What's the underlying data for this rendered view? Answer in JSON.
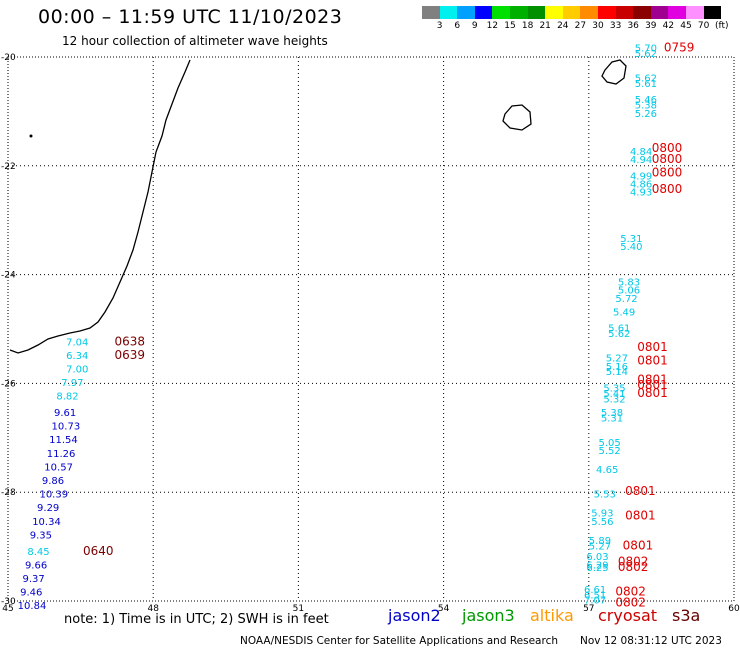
{
  "header": {
    "title": "00:00 – 11:59 UTC 11/10/2023",
    "subtitle": "12 hour collection of altimeter wave heights"
  },
  "colorbar": {
    "colors": [
      "#808080",
      "#00f0f0",
      "#00a0ff",
      "#0000ff",
      "#00e000",
      "#00b000",
      "#009000",
      "#ffff00",
      "#ffcc00",
      "#ff8c00",
      "#ff0000",
      "#c80000",
      "#8b0000",
      "#a00090",
      "#e000e0",
      "#ff90ff",
      "#000000"
    ],
    "labels": [
      "3",
      "6",
      "9",
      "12",
      "15",
      "18",
      "21",
      "24",
      "27",
      "30",
      "33",
      "36",
      "39",
      "42",
      "45",
      "70"
    ],
    "unit": "(ft)"
  },
  "axes": {
    "lon_ticks": [
      {
        "value": 45,
        "label": "45"
      },
      {
        "value": 48,
        "label": "48"
      },
      {
        "value": 51,
        "label": "51"
      },
      {
        "value": 54,
        "label": "54"
      },
      {
        "value": 57,
        "label": "57"
      },
      {
        "value": 60,
        "label": "60"
      }
    ],
    "lat_ticks": [
      {
        "value": -20,
        "label": "-20"
      },
      {
        "value": -22,
        "label": "-22"
      },
      {
        "value": -24,
        "label": "-24"
      },
      {
        "value": -26,
        "label": "-26"
      },
      {
        "value": -28,
        "label": "-28"
      },
      {
        "value": -30,
        "label": "-30"
      }
    ],
    "lon_range": [
      45,
      60
    ],
    "lat_range": [
      -30,
      -20
    ]
  },
  "colors": {
    "jason2": "#0000cc",
    "jason3": "#009900",
    "altika": "#ff9900",
    "cryosat": "#cc0000",
    "s3a": "#660000",
    "cyan": "#00c8e6",
    "red_time": "#e00000",
    "dark_time": "#7a0000"
  },
  "chart_data": {
    "type": "scatter",
    "title": "00:00 – 11:59 UTC 11/10/2023",
    "subtitle": "12 hour collection of altimeter wave heights",
    "track_west": [
      {
        "lon": 46.2,
        "lat": -25.3,
        "value": "7.04",
        "color": "cyan"
      },
      {
        "lon": 46.2,
        "lat": -25.55,
        "value": "6.34",
        "color": "cyan"
      },
      {
        "lon": 46.2,
        "lat": -25.8,
        "value": "7.00",
        "color": "cyan"
      },
      {
        "lon": 46.1,
        "lat": -26.05,
        "value": "7.97",
        "color": "cyan"
      },
      {
        "lon": 46.0,
        "lat": -26.3,
        "value": "8.82",
        "color": "cyan"
      },
      {
        "lon": 45.95,
        "lat": -26.6,
        "value": "9.61",
        "color": "blue"
      },
      {
        "lon": 45.9,
        "lat": -26.85,
        "value": "10.73",
        "color": "blue"
      },
      {
        "lon": 45.85,
        "lat": -27.1,
        "value": "11.54",
        "color": "blue"
      },
      {
        "lon": 45.8,
        "lat": -27.35,
        "value": "11.26",
        "color": "blue"
      },
      {
        "lon": 45.75,
        "lat": -27.6,
        "value": "10.57",
        "color": "blue"
      },
      {
        "lon": 45.7,
        "lat": -27.85,
        "value": "9.86",
        "color": "blue"
      },
      {
        "lon": 45.65,
        "lat": -28.1,
        "value": "10.39",
        "color": "blue"
      },
      {
        "lon": 45.6,
        "lat": -28.35,
        "value": "9.29",
        "color": "blue"
      },
      {
        "lon": 45.5,
        "lat": -28.6,
        "value": "10.34",
        "color": "blue"
      },
      {
        "lon": 45.45,
        "lat": -28.85,
        "value": "9.35",
        "color": "blue"
      },
      {
        "lon": 45.4,
        "lat": -29.15,
        "value": "8.45",
        "color": "cyan"
      },
      {
        "lon": 45.35,
        "lat": -29.4,
        "value": "9.66",
        "color": "blue"
      },
      {
        "lon": 45.3,
        "lat": -29.65,
        "value": "9.37",
        "color": "blue"
      },
      {
        "lon": 45.25,
        "lat": -29.9,
        "value": "9.46",
        "color": "blue"
      },
      {
        "lon": 45.2,
        "lat": -30.15,
        "value": "10.84",
        "color": "blue"
      }
    ],
    "track_west_times": [
      {
        "lon": 47.2,
        "lat": -25.3,
        "label": "0638"
      },
      {
        "lon": 47.2,
        "lat": -25.55,
        "label": "0639"
      },
      {
        "lon": 46.55,
        "lat": -29.15,
        "label": "0640"
      }
    ],
    "track_east": [
      {
        "lon": 57.95,
        "lat": -19.9,
        "value": "5.70",
        "color": "cyan"
      },
      {
        "lon": 57.95,
        "lat": -20.0,
        "value": "5.62",
        "color": "cyan"
      },
      {
        "lon": 57.95,
        "lat": -20.45,
        "value": "5.62",
        "color": "cyan"
      },
      {
        "lon": 57.95,
        "lat": -20.55,
        "value": "5.61",
        "color": "cyan"
      },
      {
        "lon": 57.95,
        "lat": -20.85,
        "value": "5.46",
        "color": "cyan"
      },
      {
        "lon": 57.95,
        "lat": -20.95,
        "value": "5.38",
        "color": "cyan"
      },
      {
        "lon": 57.95,
        "lat": -21.1,
        "value": "5.26",
        "color": "cyan"
      },
      {
        "lon": 57.85,
        "lat": -21.8,
        "value": "4.84",
        "color": "cyan"
      },
      {
        "lon": 57.85,
        "lat": -21.95,
        "value": "4.94",
        "color": "cyan"
      },
      {
        "lon": 57.85,
        "lat": -22.25,
        "value": "4.99",
        "color": "cyan"
      },
      {
        "lon": 57.85,
        "lat": -22.4,
        "value": "4.86",
        "color": "cyan"
      },
      {
        "lon": 57.85,
        "lat": -22.55,
        "value": "4.93",
        "color": "cyan"
      },
      {
        "lon": 57.65,
        "lat": -23.4,
        "value": "5.31",
        "color": "cyan"
      },
      {
        "lon": 57.65,
        "lat": -23.55,
        "value": "5.40",
        "color": "cyan"
      },
      {
        "lon": 57.6,
        "lat": -24.2,
        "value": "5.83",
        "color": "cyan"
      },
      {
        "lon": 57.6,
        "lat": -24.35,
        "value": "5.06",
        "color": "cyan"
      },
      {
        "lon": 57.55,
        "lat": -24.5,
        "value": "5.72",
        "color": "cyan"
      },
      {
        "lon": 57.5,
        "lat": -24.75,
        "value": "5.49",
        "color": "cyan"
      },
      {
        "lon": 57.4,
        "lat": -25.05,
        "value": "5.61",
        "color": "cyan"
      },
      {
        "lon": 57.4,
        "lat": -25.15,
        "value": "5.62",
        "color": "cyan"
      },
      {
        "lon": 57.35,
        "lat": -25.6,
        "value": "5.27",
        "color": "cyan"
      },
      {
        "lon": 57.35,
        "lat": -25.75,
        "value": "5.16",
        "color": "cyan"
      },
      {
        "lon": 57.35,
        "lat": -25.85,
        "value": "5.14",
        "color": "cyan"
      },
      {
        "lon": 57.3,
        "lat": -26.15,
        "value": "5.35",
        "color": "cyan"
      },
      {
        "lon": 57.3,
        "lat": -26.25,
        "value": "5.41",
        "color": "cyan"
      },
      {
        "lon": 57.3,
        "lat": -26.35,
        "value": "5.32",
        "color": "cyan"
      },
      {
        "lon": 57.25,
        "lat": -26.6,
        "value": "5.38",
        "color": "cyan"
      },
      {
        "lon": 57.25,
        "lat": -26.7,
        "value": "5.31",
        "color": "cyan"
      },
      {
        "lon": 57.2,
        "lat": -27.15,
        "value": "5.05",
        "color": "cyan"
      },
      {
        "lon": 57.2,
        "lat": -27.3,
        "value": "5.52",
        "color": "cyan"
      },
      {
        "lon": 57.15,
        "lat": -27.65,
        "value": "4.65",
        "color": "cyan"
      },
      {
        "lon": 57.1,
        "lat": -28.1,
        "value": "5.53",
        "color": "cyan"
      },
      {
        "lon": 57.05,
        "lat": -28.45,
        "value": "5.93",
        "color": "cyan"
      },
      {
        "lon": 57.05,
        "lat": -28.6,
        "value": "5.56",
        "color": "cyan"
      },
      {
        "lon": 57.0,
        "lat": -28.95,
        "value": "5.89",
        "color": "cyan"
      },
      {
        "lon": 57.0,
        "lat": -29.05,
        "value": "5.27",
        "color": "cyan"
      },
      {
        "lon": 56.95,
        "lat": -29.25,
        "value": "6.03",
        "color": "cyan"
      },
      {
        "lon": 56.95,
        "lat": -29.4,
        "value": "6.29",
        "color": "cyan"
      },
      {
        "lon": 56.95,
        "lat": -29.45,
        "value": "6.25",
        "color": "cyan"
      },
      {
        "lon": 56.9,
        "lat": -29.85,
        "value": "6.61",
        "color": "cyan"
      },
      {
        "lon": 56.9,
        "lat": -29.95,
        "value": "6.51",
        "color": "cyan"
      },
      {
        "lon": 56.9,
        "lat": -30.05,
        "value": "7.07",
        "color": "cyan"
      }
    ],
    "track_east_times": [
      {
        "lon": 58.55,
        "lat": -19.9,
        "label": "0759"
      },
      {
        "lon": 58.3,
        "lat": -21.75,
        "label": "0800"
      },
      {
        "lon": 58.3,
        "lat": -21.95,
        "label": "0800"
      },
      {
        "lon": 58.3,
        "lat": -22.2,
        "label": "0800"
      },
      {
        "lon": 58.3,
        "lat": -22.5,
        "label": "0800"
      },
      {
        "lon": 58.0,
        "lat": -25.4,
        "label": "0801"
      },
      {
        "lon": 58.0,
        "lat": -25.65,
        "label": "0801"
      },
      {
        "lon": 58.0,
        "lat": -26.0,
        "label": "0801"
      },
      {
        "lon": 58.0,
        "lat": -26.1,
        "label": "0801"
      },
      {
        "lon": 58.0,
        "lat": -26.25,
        "label": "0801"
      },
      {
        "lon": 57.75,
        "lat": -28.05,
        "label": "0801"
      },
      {
        "lon": 57.75,
        "lat": -28.5,
        "label": "0801"
      },
      {
        "lon": 57.7,
        "lat": -29.05,
        "label": "0801"
      },
      {
        "lon": 57.6,
        "lat": -29.35,
        "label": "0802"
      },
      {
        "lon": 57.6,
        "lat": -29.45,
        "label": "0802"
      },
      {
        "lon": 57.55,
        "lat": -29.9,
        "label": "0802"
      },
      {
        "lon": 57.55,
        "lat": -30.1,
        "label": "0802"
      }
    ]
  },
  "footer": {
    "note": "note:  1) Time is in UTC;  2) SWH is in feet",
    "legend": [
      {
        "label": "jason2",
        "color": "#0000cc"
      },
      {
        "label": "jason3",
        "color": "#009900"
      },
      {
        "label": "altika",
        "color": "#ff9900"
      },
      {
        "label": "cryosat",
        "color": "#cc0000"
      },
      {
        "label": "s3a",
        "color": "#660000"
      }
    ],
    "credit": "NOAA/NESDIS Center for Satellite Applications and Research",
    "timestamp": "Nov 12 08:31:12 UTC 2023"
  }
}
